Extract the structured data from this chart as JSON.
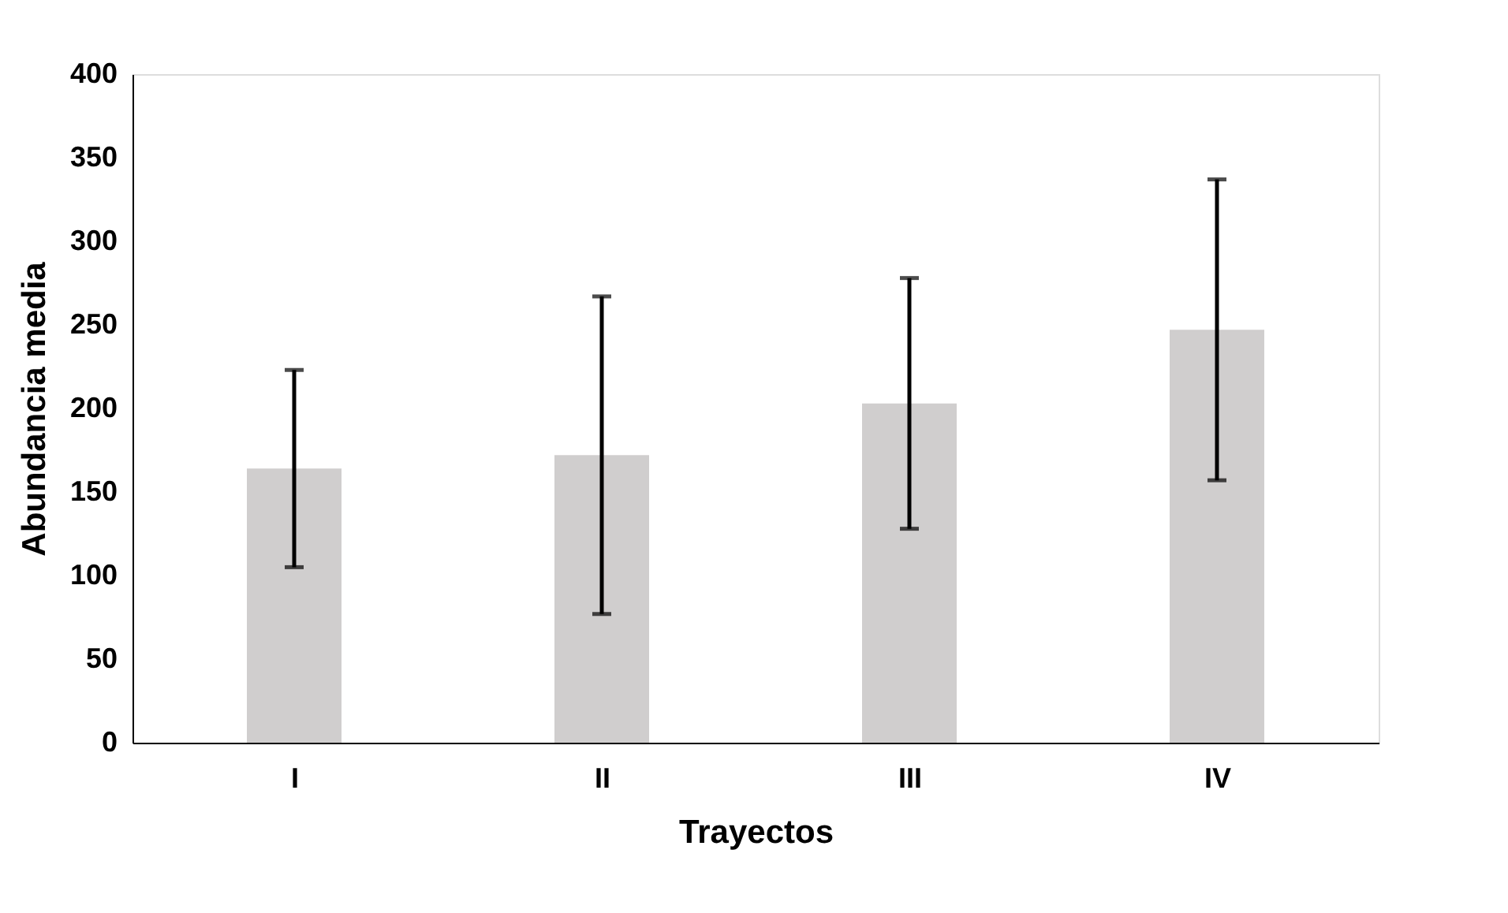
{
  "chart_data": {
    "type": "bar",
    "xlabel": "Trayectos",
    "ylabel": "Abundancia media",
    "categories": [
      "I",
      "II",
      "III",
      "IV"
    ],
    "values": [
      164,
      172,
      203,
      247
    ],
    "errors": [
      59,
      95,
      75,
      90
    ],
    "color": "#d0cece",
    "ylim": [
      0,
      400
    ],
    "yticks": [
      0,
      50,
      100,
      150,
      200,
      250,
      300,
      350,
      400
    ],
    "grid": false
  }
}
